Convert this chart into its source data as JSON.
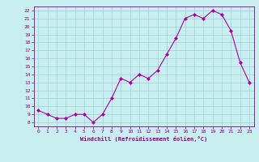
{
  "x": [
    0,
    1,
    2,
    3,
    4,
    5,
    6,
    7,
    8,
    9,
    10,
    11,
    12,
    13,
    14,
    15,
    16,
    17,
    18,
    19,
    20,
    21,
    22,
    23
  ],
  "y": [
    9.5,
    9.0,
    8.5,
    8.5,
    9.0,
    9.0,
    8.0,
    9.0,
    11.0,
    13.5,
    13.0,
    14.0,
    13.5,
    14.5,
    16.5,
    18.5,
    21.0,
    21.5,
    21.0,
    22.0,
    21.5,
    19.5,
    15.5,
    13.0
  ],
  "line_color": "#aa00aa",
  "marker": "D",
  "marker_size": 2,
  "bg_color": "#c8eef0",
  "grid_color": "#a0d0d8",
  "xlabel": "Windchill (Refroidissement éolien,°C)",
  "xlabel_color": "#880088",
  "ylim": [
    7.5,
    22.5
  ],
  "xlim": [
    -0.5,
    23.5
  ],
  "yticks": [
    8,
    9,
    10,
    11,
    12,
    13,
    14,
    15,
    16,
    17,
    18,
    19,
    20,
    21,
    22
  ],
  "xticks": [
    0,
    1,
    2,
    3,
    4,
    5,
    6,
    7,
    8,
    9,
    10,
    11,
    12,
    13,
    14,
    15,
    16,
    17,
    18,
    19,
    20,
    21,
    22,
    23
  ],
  "tick_color": "#880088",
  "spine_color": "#880088",
  "title_color": "#880088"
}
